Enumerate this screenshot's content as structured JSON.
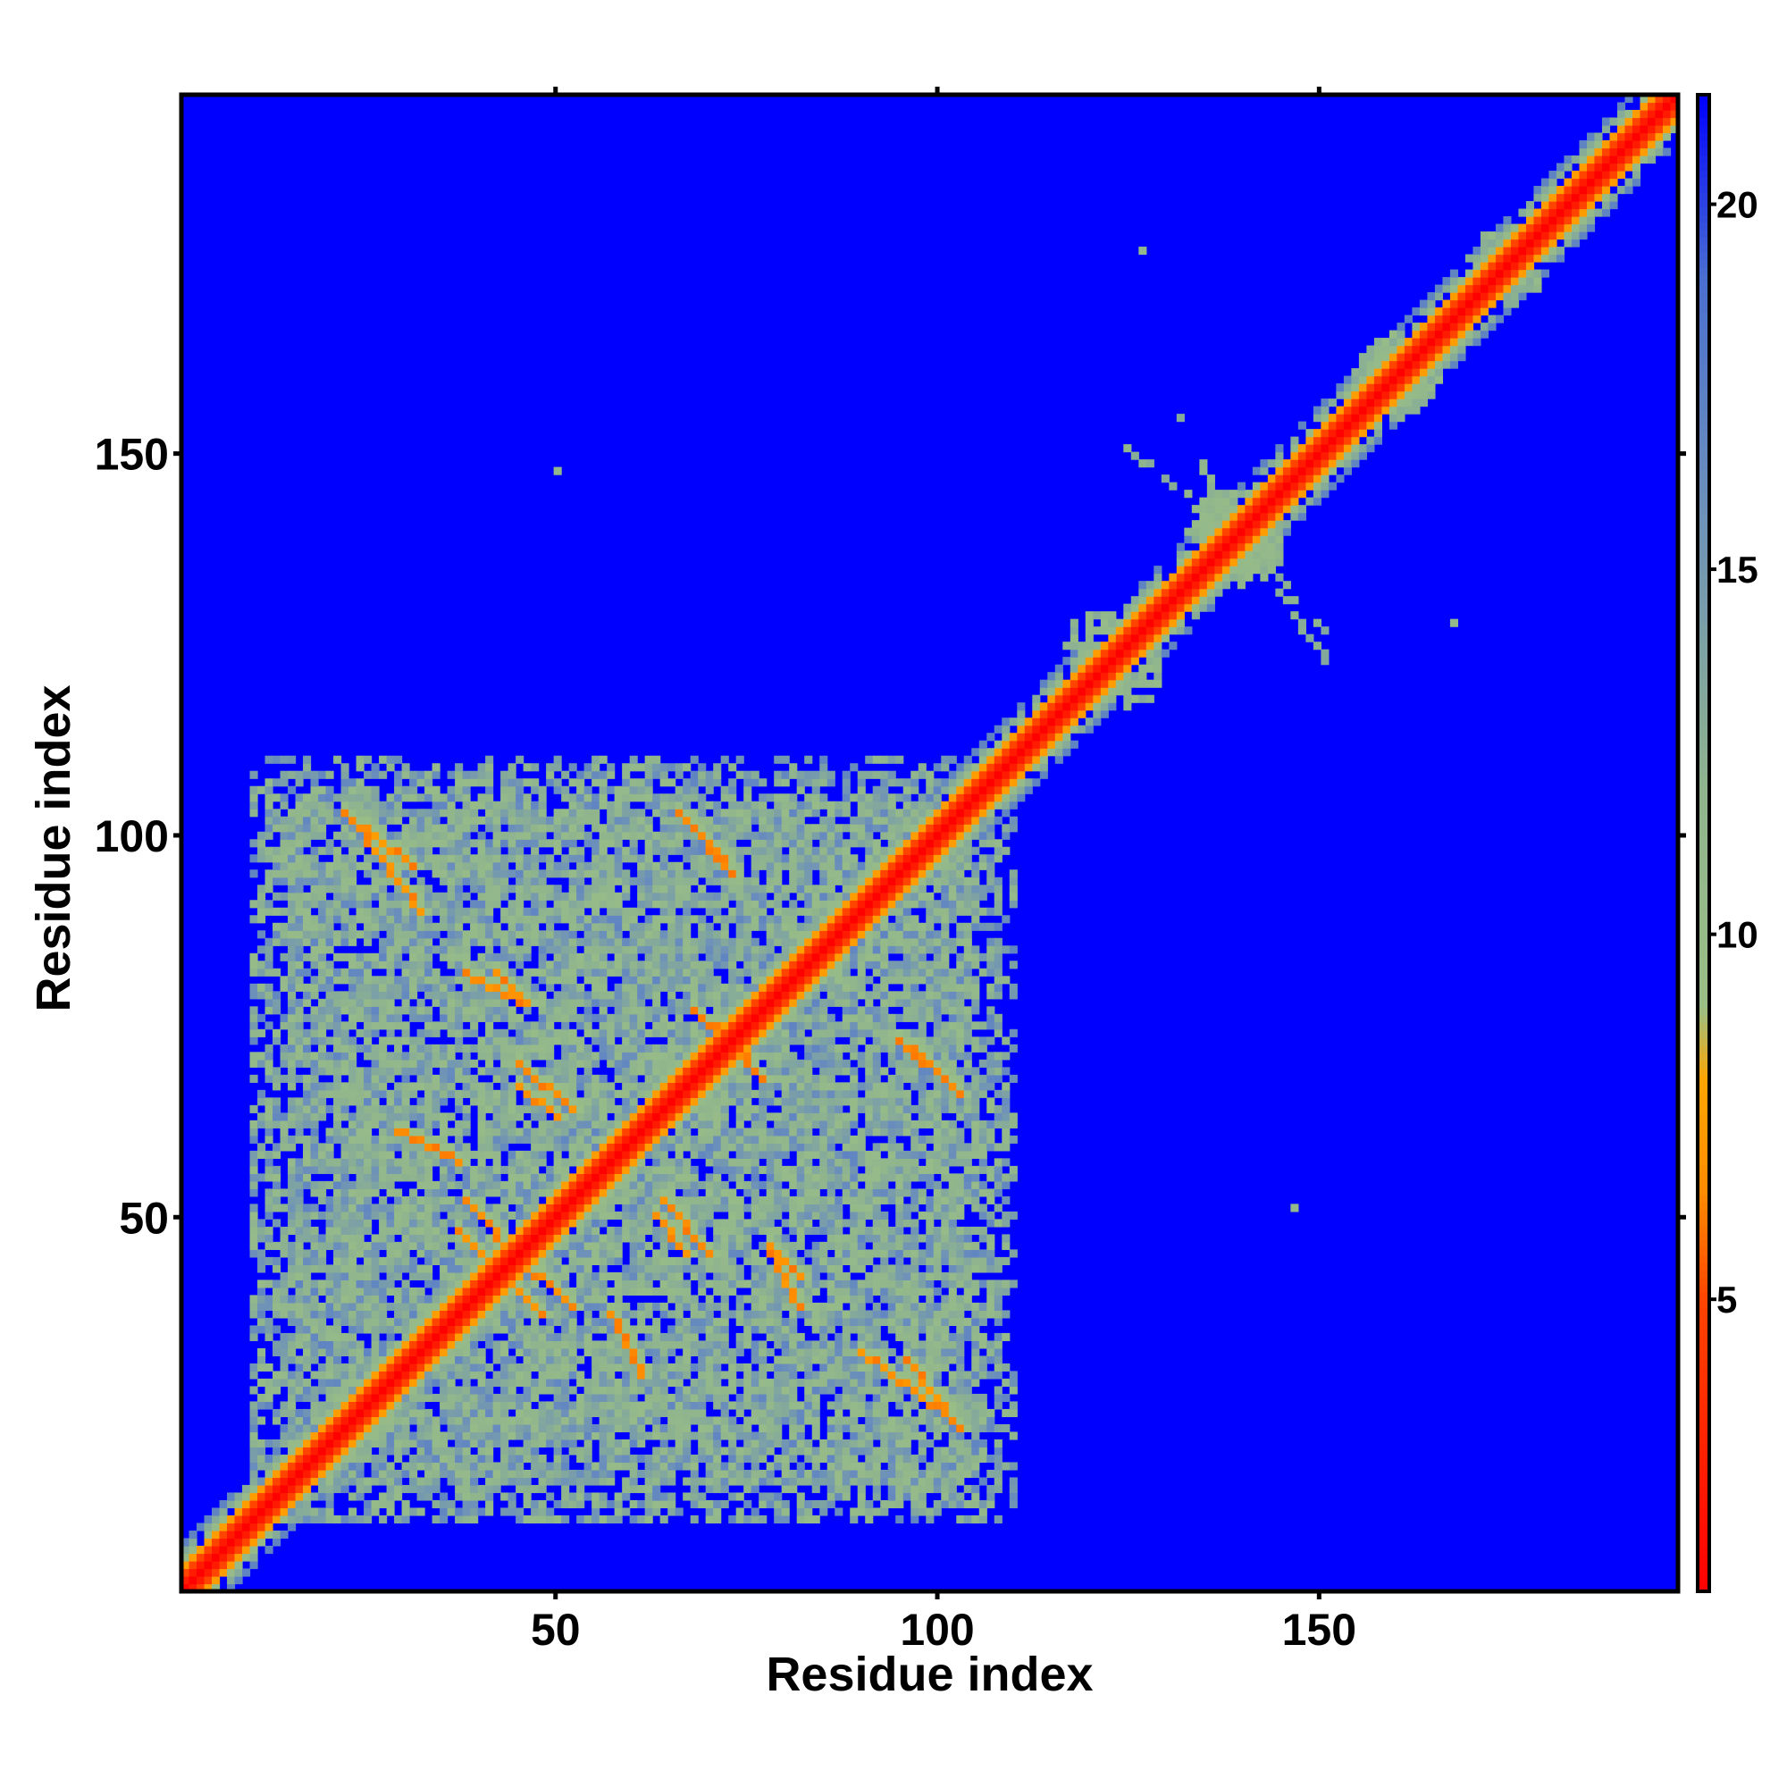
{
  "chart_data": {
    "type": "heatmap",
    "title": "",
    "xlabel": "Residue index",
    "ylabel": "Residue index",
    "xlim": [
      1,
      197
    ],
    "ylim": [
      1,
      197
    ],
    "xticks": [
      50,
      100,
      150
    ],
    "yticks": [
      50,
      100,
      150
    ],
    "colorbar": {
      "ticks": [
        5,
        10,
        15,
        20
      ],
      "range": [
        1,
        21.5
      ],
      "colors": [
        {
          "value": 1,
          "color": "#ff0000"
        },
        {
          "value": 5,
          "color": "#ff4400"
        },
        {
          "value": 6.5,
          "color": "#ff8c00"
        },
        {
          "value": 8,
          "color": "#ffa500"
        },
        {
          "value": 9,
          "color": "#9bbf85"
        },
        {
          "value": 12,
          "color": "#8fb48e"
        },
        {
          "value": 16,
          "color": "#6b8fbb"
        },
        {
          "value": 19,
          "color": "#4a6fd0"
        },
        {
          "value": 21.5,
          "color": "#0000ff"
        }
      ]
    },
    "description_values": {
      "background_value": 21.5,
      "diagonal_value": 1
    },
    "matrix_size": 197,
    "contact_features": [
      {
        "kind": "diagonal",
        "from": 1,
        "to": 197
      },
      {
        "kind": "domain_block",
        "x": [
          10,
          110
        ],
        "y": [
          10,
          108
        ]
      },
      {
        "kind": "strand",
        "from": [
          22,
          103
        ],
        "to": [
          31,
          96
        ],
        "value": 6
      },
      {
        "kind": "strand",
        "from": [
          66,
          103
        ],
        "to": [
          72,
          97
        ],
        "value": 6
      },
      {
        "kind": "strand",
        "from": [
          90,
          32
        ],
        "to": [
          102,
          23
        ],
        "value": 6
      },
      {
        "kind": "strand",
        "from": [
          95,
          73
        ],
        "to": [
          103,
          66
        ],
        "value": 6
      },
      {
        "kind": "strand",
        "from": [
          37,
          48
        ],
        "to": [
          43,
          42
        ],
        "value": 6
      },
      {
        "kind": "strand",
        "from": [
          45,
          67
        ],
        "to": [
          50,
          63
        ],
        "value": 6
      },
      {
        "kind": "strand",
        "from": [
          64,
          52
        ],
        "to": [
          70,
          45
        ],
        "value": 6
      },
      {
        "kind": "strand",
        "from": [
          78,
          46
        ],
        "to": [
          82,
          42
        ],
        "value": 6
      },
      {
        "kind": "strand",
        "from": [
          38,
          82
        ],
        "to": [
          45,
          78
        ],
        "value": 6
      },
      {
        "kind": "strand",
        "from": [
          68,
          77
        ],
        "to": [
          75,
          71
        ],
        "value": 6
      },
      {
        "kind": "strand",
        "from": [
          29,
          61
        ],
        "to": [
          37,
          57
        ],
        "value": 6
      },
      {
        "kind": "strand",
        "from": [
          43,
          46
        ],
        "to": [
          52,
          38
        ],
        "value": 6
      },
      {
        "kind": "patch",
        "x": 122,
        "y": 125,
        "r": 5
      },
      {
        "kind": "patch",
        "x": 139,
        "y": 140,
        "r": 6
      },
      {
        "kind": "patch",
        "x": 160,
        "y": 161,
        "r": 5
      },
      {
        "kind": "patch",
        "x": 174,
        "y": 176,
        "r": 4
      },
      {
        "kind": "cross",
        "center": [
          139,
          140
        ],
        "arms": [
          [
            121,
            154
          ],
          [
            130,
            159
          ],
          [
            152,
            122
          ],
          [
            154,
            124
          ]
        ]
      },
      {
        "kind": "isolated",
        "points": [
          [
            50,
            148
          ],
          [
            127,
            177
          ],
          [
            168,
            128
          ],
          [
            147,
            51
          ]
        ]
      }
    ]
  }
}
